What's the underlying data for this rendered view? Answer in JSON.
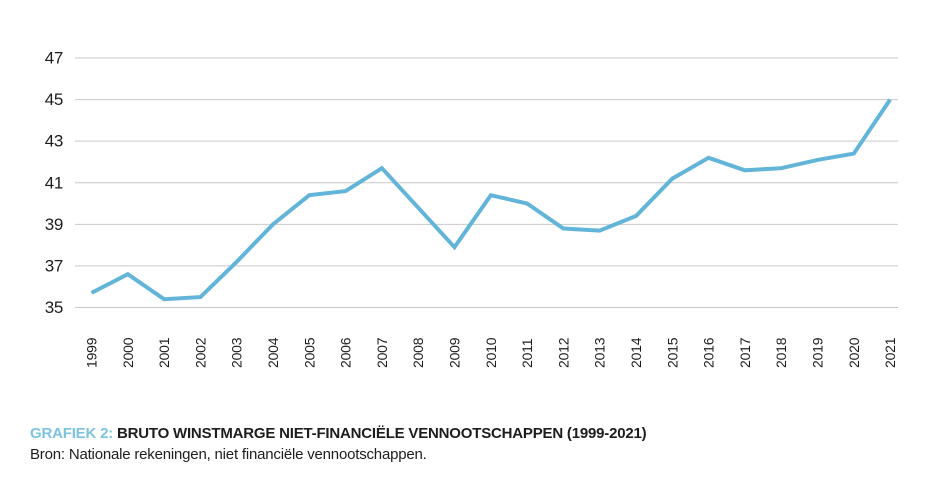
{
  "caption": {
    "label": "GRAFIEK 2:",
    "title": "BRUTO WINSTMARGE NIET-FINANCIËLE VENNOOTSCHAPPEN (1999-2021)",
    "source": "Bron: Nationale rekeningen, niet financiële vennootschappen."
  },
  "colors": {
    "line": "#63B4D9",
    "caption_label": "#7CC3E2",
    "grid": "#C9C9C9",
    "text": "#1D1D1B"
  },
  "chart_data": {
    "type": "line",
    "title": "GRAFIEK 2: BRUTO WINSTMARGE NIET-FINANCIËLE VENNOOTSCHAPPEN (1999-2021)",
    "source": "Bron: Nationale rekeningen, niet financiële vennootschappen.",
    "x": [
      1999,
      2000,
      2001,
      2002,
      2003,
      2004,
      2005,
      2006,
      2007,
      2008,
      2009,
      2010,
      2011,
      2012,
      2013,
      2014,
      2015,
      2016,
      2017,
      2018,
      2019,
      2020,
      2021
    ],
    "values": [
      35.7,
      36.6,
      35.4,
      35.5,
      37.2,
      39.0,
      40.4,
      40.6,
      41.7,
      39.8,
      37.9,
      40.4,
      40.0,
      38.8,
      38.7,
      39.4,
      41.2,
      42.2,
      41.6,
      41.7,
      42.1,
      42.4,
      45.0
    ],
    "series_name": "Bruto winstmarge",
    "xlabel": "",
    "ylabel": "",
    "ylim": [
      35,
      47
    ],
    "yticks": [
      35,
      37,
      39,
      41,
      43,
      45,
      47
    ],
    "grid": true,
    "legend": "none"
  }
}
